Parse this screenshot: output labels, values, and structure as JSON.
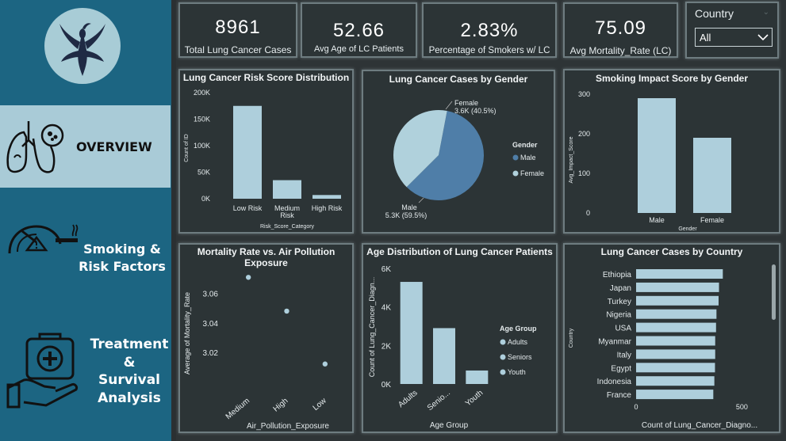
{
  "nav": {
    "overview": "OVERVIEW",
    "smoking_line1": "Smoking &",
    "smoking_line2": "Risk Factors",
    "treatment_line1": "Treatment",
    "treatment_line2": "&",
    "treatment_line3": "Survival",
    "treatment_line4": "Analysis"
  },
  "kpis": [
    {
      "value": "8961",
      "label": "Total Lung Cancer Cases"
    },
    {
      "value": "52.66",
      "label": "Avg Age of LC Patients"
    },
    {
      "value": "2.83%",
      "label": "Percentage of Smokers w/ LC"
    },
    {
      "value": "75.09",
      "label": "Avg Mortality_Rate (LC)"
    }
  ],
  "filter": {
    "title": "Country",
    "value": "All"
  },
  "colors": {
    "bar": "#aecfdc",
    "male": "#4f7ea8",
    "female": "#b0d1dc",
    "sidebar": "#1c6582",
    "background": "#2e3436"
  },
  "chart_data": [
    {
      "type": "bar",
      "title": "Lung Cancer Risk Score Distribution",
      "categories": [
        "Low Risk",
        "Medium Risk",
        "High Risk"
      ],
      "category_lines": [
        [
          "Low Risk"
        ],
        [
          "Medium",
          "Risk"
        ],
        [
          "High Risk"
        ]
      ],
      "values": [
        175000,
        35000,
        7000
      ],
      "ylim": [
        0,
        200000
      ],
      "ticks": [
        0,
        50000,
        100000,
        150000,
        200000
      ],
      "tick_labels": [
        "0K",
        "50K",
        "100K",
        "150K",
        "200K"
      ],
      "xlabel": "Risk_Score_Category",
      "ylabel": "Count of ID"
    },
    {
      "type": "pie",
      "title": "Lung Cancer Cases by Gender",
      "slices": [
        {
          "name": "Male",
          "value": 5.3,
          "label": "5.3K (59.5%)",
          "percent": 59.5
        },
        {
          "name": "Female",
          "value": 3.6,
          "label": "3.6K (40.5%)",
          "percent": 40.5
        }
      ],
      "legend_title": "Gender",
      "legend_position": "right"
    },
    {
      "type": "bar",
      "title": "Smoking Impact Score by Gender",
      "categories": [
        "Male",
        "Female"
      ],
      "values": [
        290,
        190
      ],
      "ylim": [
        0,
        300
      ],
      "ticks": [
        0,
        100,
        200,
        300
      ],
      "tick_labels": [
        "0",
        "100",
        "200",
        "300"
      ],
      "xlabel": "Gender",
      "ylabel": "Avg_Impact_Score"
    },
    {
      "type": "scatter",
      "title": "Mortality Rate vs. Air Pollution Exposure",
      "title_lines": [
        "Mortality Rate vs. Air Pollution",
        "Exposure"
      ],
      "categories": [
        "Medium",
        "High",
        "Low"
      ],
      "values": [
        3.071,
        3.048,
        3.012
      ],
      "ylim": [
        3.0,
        3.076
      ],
      "ticks": [
        3.02,
        3.04,
        3.06
      ],
      "tick_labels": [
        "3.02",
        "3.04",
        "3.06"
      ],
      "xlabel": "Air_Pollution_Exposure",
      "ylabel": "Average of Mortality_Rate"
    },
    {
      "type": "bar",
      "title": "Age Distribution of Lung Cancer Patients",
      "categories": [
        "Adults",
        "Seniors",
        "Youth"
      ],
      "category_display": [
        "Adults",
        "Senio...",
        "Youth"
      ],
      "values": [
        5300,
        2900,
        700
      ],
      "ylim": [
        0,
        6000
      ],
      "ticks": [
        0,
        2000,
        4000,
        6000
      ],
      "tick_labels": [
        "0K",
        "2K",
        "4K",
        "6K"
      ],
      "xlabel": "Age Group",
      "ylabel": "Count of Lung_Cancer_Diagn...",
      "legend_title": "Age Group",
      "legend": [
        "Adults",
        "Seniors",
        "Youth"
      ],
      "legend_position": "right"
    },
    {
      "type": "bar",
      "orientation": "horizontal",
      "title": "Lung Cancer Cases by Country",
      "categories": [
        "Ethiopia",
        "Japan",
        "Turkey",
        "Nigeria",
        "USA",
        "Myanmar",
        "Italy",
        "Egypt",
        "Indonesia",
        "France"
      ],
      "values": [
        410,
        392,
        390,
        380,
        378,
        374,
        374,
        373,
        370,
        365
      ],
      "xlim": [
        0,
        600
      ],
      "ticks": [
        0,
        500
      ],
      "tick_labels": [
        "0",
        "500"
      ],
      "xlabel": "Count of Lung_Cancer_Diagno...",
      "ylabel": "Country"
    }
  ]
}
